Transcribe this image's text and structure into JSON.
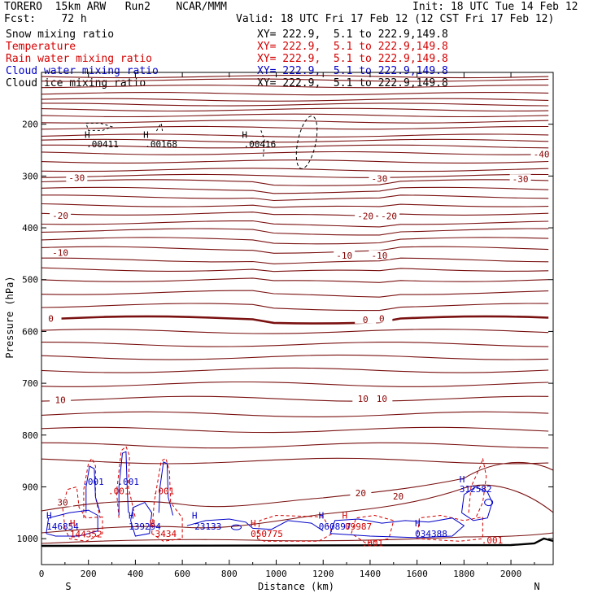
{
  "header": {
    "model": "TORERO  15km ARW   Run2    NCAR/MMM",
    "init": "Init: 18 UTC Tue 14 Feb 12",
    "fcst": "Fcst:    72 h",
    "valid": "Valid: 18 UTC Fri 17 Feb 12 (12 CST Fri 17 Feb 12)"
  },
  "legend": [
    {
      "label": "Snow mixing ratio",
      "xy": "XY= 222.9,  5.1 to 222.9,149.8",
      "color": "#000000"
    },
    {
      "label": "Temperature",
      "xy": "XY= 222.9,  5.1 to 222.9,149.8",
      "color": "#d40000"
    },
    {
      "label": "Rain water mixing ratio",
      "xy": "XY= 222.9,  5.1 to 222.9,149.8",
      "color": "#d40000"
    },
    {
      "label": "Cloud water mixing ratio",
      "xy": "XY= 222.9,  5.1 to 222.9,149.8",
      "color": "#0000c8"
    },
    {
      "label": "Cloud ice mixing ratio",
      "xy": "XY= 222.9,  5.1 to 222.9,149.8",
      "color": "#000000"
    }
  ],
  "chart_data": {
    "type": "cross-section contour",
    "xlabel": "Distance (km)",
    "ylabel": "Pressure (hPa)",
    "xlim": [
      0,
      2180
    ],
    "ylim": [
      1050,
      100
    ],
    "x_ticks": [
      0,
      200,
      400,
      600,
      800,
      1000,
      1200,
      1400,
      1600,
      1800,
      2000
    ],
    "y_ticks": [
      200,
      300,
      400,
      500,
      600,
      700,
      800,
      900,
      1000
    ],
    "start_label": "S",
    "end_label": "N",
    "temperature_labels": [
      {
        "text": "-40",
        "x": 2130,
        "p": 258
      },
      {
        "text": "-30",
        "x": 150,
        "p": 303
      },
      {
        "text": "-30",
        "x": 1440,
        "p": 305
      },
      {
        "text": "-30",
        "x": 2040,
        "p": 306
      },
      {
        "text": "-20",
        "x": 80,
        "p": 376
      },
      {
        "text": "-20",
        "x": 1380,
        "p": 377
      },
      {
        "text": "-20",
        "x": 1480,
        "p": 377
      },
      {
        "text": "-10",
        "x": 80,
        "p": 448
      },
      {
        "text": "-10",
        "x": 1290,
        "p": 453
      },
      {
        "text": "-10",
        "x": 1440,
        "p": 453
      },
      {
        "text": "0",
        "x": 40,
        "p": 575
      },
      {
        "text": "0",
        "x": 1380,
        "p": 577
      },
      {
        "text": "0",
        "x": 1450,
        "p": 575
      },
      {
        "text": "10",
        "x": 80,
        "p": 732
      },
      {
        "text": "10",
        "x": 1370,
        "p": 730
      },
      {
        "text": "10",
        "x": 1450,
        "p": 730
      },
      {
        "text": "20",
        "x": 1360,
        "p": 912
      },
      {
        "text": "20",
        "x": 1520,
        "p": 918
      },
      {
        "text": "30",
        "x": 90,
        "p": 930
      }
    ],
    "cloud_ice_maxima": [
      {
        "text": ".00411",
        "x": 260,
        "p": 238,
        "hp": 220
      },
      {
        "text": ".00168",
        "x": 510,
        "p": 238,
        "hp": 220
      },
      {
        "text": ".00416",
        "x": 930,
        "p": 238,
        "hp": 220
      }
    ],
    "rain_labels": [
      {
        "text": ".001",
        "x": 330,
        "p": 908
      },
      {
        "text": ".001",
        "x": 520,
        "p": 908
      },
      {
        "text": ".001",
        "x": 1920,
        "p": 1003
      },
      {
        "text": ".001",
        "x": 1410,
        "p": 1008
      }
    ],
    "cloud_water_labels": [
      {
        "text": ".001",
        "x": 220,
        "p": 890
      },
      {
        "text": ".001",
        "x": 370,
        "p": 890
      }
    ],
    "cloud_water_maxima": [
      {
        "text": "146854",
        "x": 90,
        "p": 976,
        "hp": 955,
        "color": "#0000c8"
      },
      {
        "text": "144352",
        "x": 190,
        "p": 991,
        "hp": 970,
        "color": "#d40000"
      },
      {
        "text": "139294",
        "x": 440,
        "p": 976,
        "hp": 955,
        "color": "#0000c8"
      },
      {
        "text": "3434",
        "x": 530,
        "p": 990,
        "hp": 970,
        "color": "#d40000"
      },
      {
        "text": "23133",
        "x": 710,
        "p": 976,
        "hp": 955,
        "color": "#0000c8"
      },
      {
        "text": "050775",
        "x": 960,
        "p": 990,
        "hp": 970,
        "color": "#d40000"
      },
      {
        "text": "060897",
        "x": 1250,
        "p": 976,
        "hp": 955,
        "color": "#0000c8"
      },
      {
        "text": "09987",
        "x": 1350,
        "p": 976,
        "hp": 955,
        "color": "#d40000"
      },
      {
        "text": "034388",
        "x": 1660,
        "p": 990,
        "hp": 970,
        "color": "#0000c8"
      },
      {
        "text": "312582",
        "x": 1850,
        "p": 904,
        "hp": 885,
        "color": "#0000c8"
      }
    ]
  }
}
